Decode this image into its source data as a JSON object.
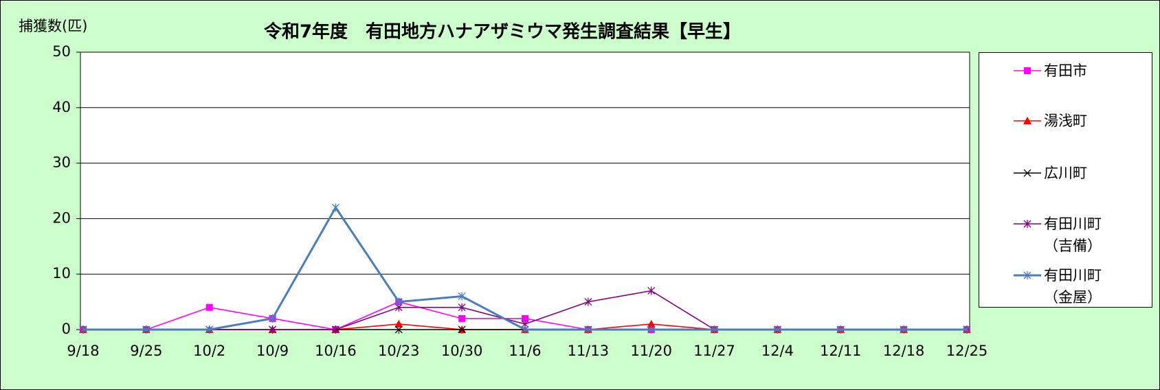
{
  "chart_data": {
    "type": "line",
    "title": "令和7年度　有田地方ハナアザミウマ発生調査結果【早生】",
    "y_label": "捕獲数(匹)",
    "categories": [
      "9/18",
      "9/25",
      "10/2",
      "10/9",
      "10/16",
      "10/23",
      "10/30",
      "11/6",
      "11/13",
      "11/20",
      "11/27",
      "12/4",
      "12/11",
      "12/18",
      "12/25"
    ],
    "ylim": [
      0,
      50
    ],
    "yticks": [
      0,
      10,
      20,
      30,
      40,
      50
    ],
    "grid": true,
    "legend": "right",
    "series": [
      {
        "name": "有田市",
        "color": "#ff00ff",
        "marker": "square",
        "values": [
          0,
          0,
          4,
          2,
          0,
          5,
          2,
          2,
          0,
          0,
          0,
          0,
          0,
          0,
          0
        ]
      },
      {
        "name": "湯浅町",
        "color": "#ff0000",
        "marker": "triangle",
        "values": [
          0,
          0,
          0,
          0,
          0,
          1,
          0,
          0,
          0,
          1,
          0,
          0,
          0,
          0,
          0
        ]
      },
      {
        "name": "広川町",
        "color": "#000000",
        "marker": "x",
        "values": [
          0,
          0,
          0,
          0,
          0,
          0,
          0,
          0,
          0,
          0,
          0,
          0,
          0,
          0,
          0
        ]
      },
      {
        "name": "有田川町\n（吉備）",
        "color": "#800080",
        "marker": "star",
        "values": [
          0,
          0,
          0,
          0,
          0,
          4,
          4,
          1,
          5,
          7,
          0,
          0,
          0,
          0,
          0
        ]
      },
      {
        "name": "有田川町\n（金屋）",
        "color": "#4a7ebb",
        "marker": "star",
        "width": 3,
        "values": [
          0,
          0,
          0,
          2,
          22,
          5,
          6,
          0,
          0,
          0,
          0,
          0,
          0,
          0,
          0
        ]
      }
    ]
  }
}
